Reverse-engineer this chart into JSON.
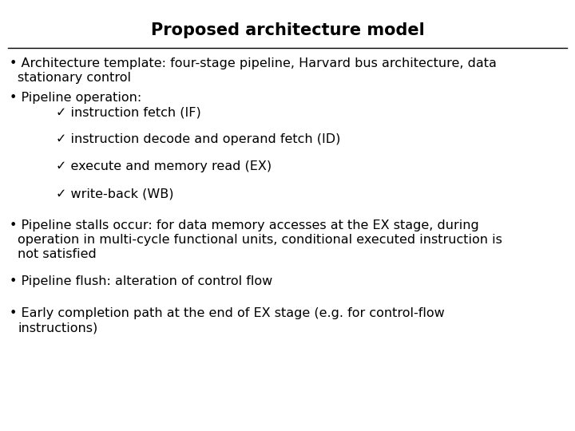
{
  "title": "Proposed architecture model",
  "background_color": "#ffffff",
  "text_color": "#000000",
  "title_fontsize": 15,
  "body_fontsize": 11.5,
  "font_family": "DejaVu Sans",
  "bullet1_line1": "• Architecture template: four-stage pipeline, Harvard bus architecture, data",
  "bullet1_line2": "stationary control",
  "bullet2_header": "• Pipeline operation:",
  "checkmarks": [
    "✓ instruction fetch (IF)",
    "✓ instruction decode and operand fetch (ID)",
    "✓ execute and memory read (EX)",
    "✓ write-back (WB)"
  ],
  "bullet3_line1": "• Pipeline stalls occur: for data memory accesses at the EX stage, during",
  "bullet3_line2": "operation in multi-cycle functional units, conditional executed instruction is",
  "bullet3_line3": "not satisfied",
  "bullet4": "• Pipeline flush: alteration of control flow",
  "bullet5_line1": "• Early completion path at the end of EX stage (e.g. for control-flow",
  "bullet5_line2": "instructions)"
}
